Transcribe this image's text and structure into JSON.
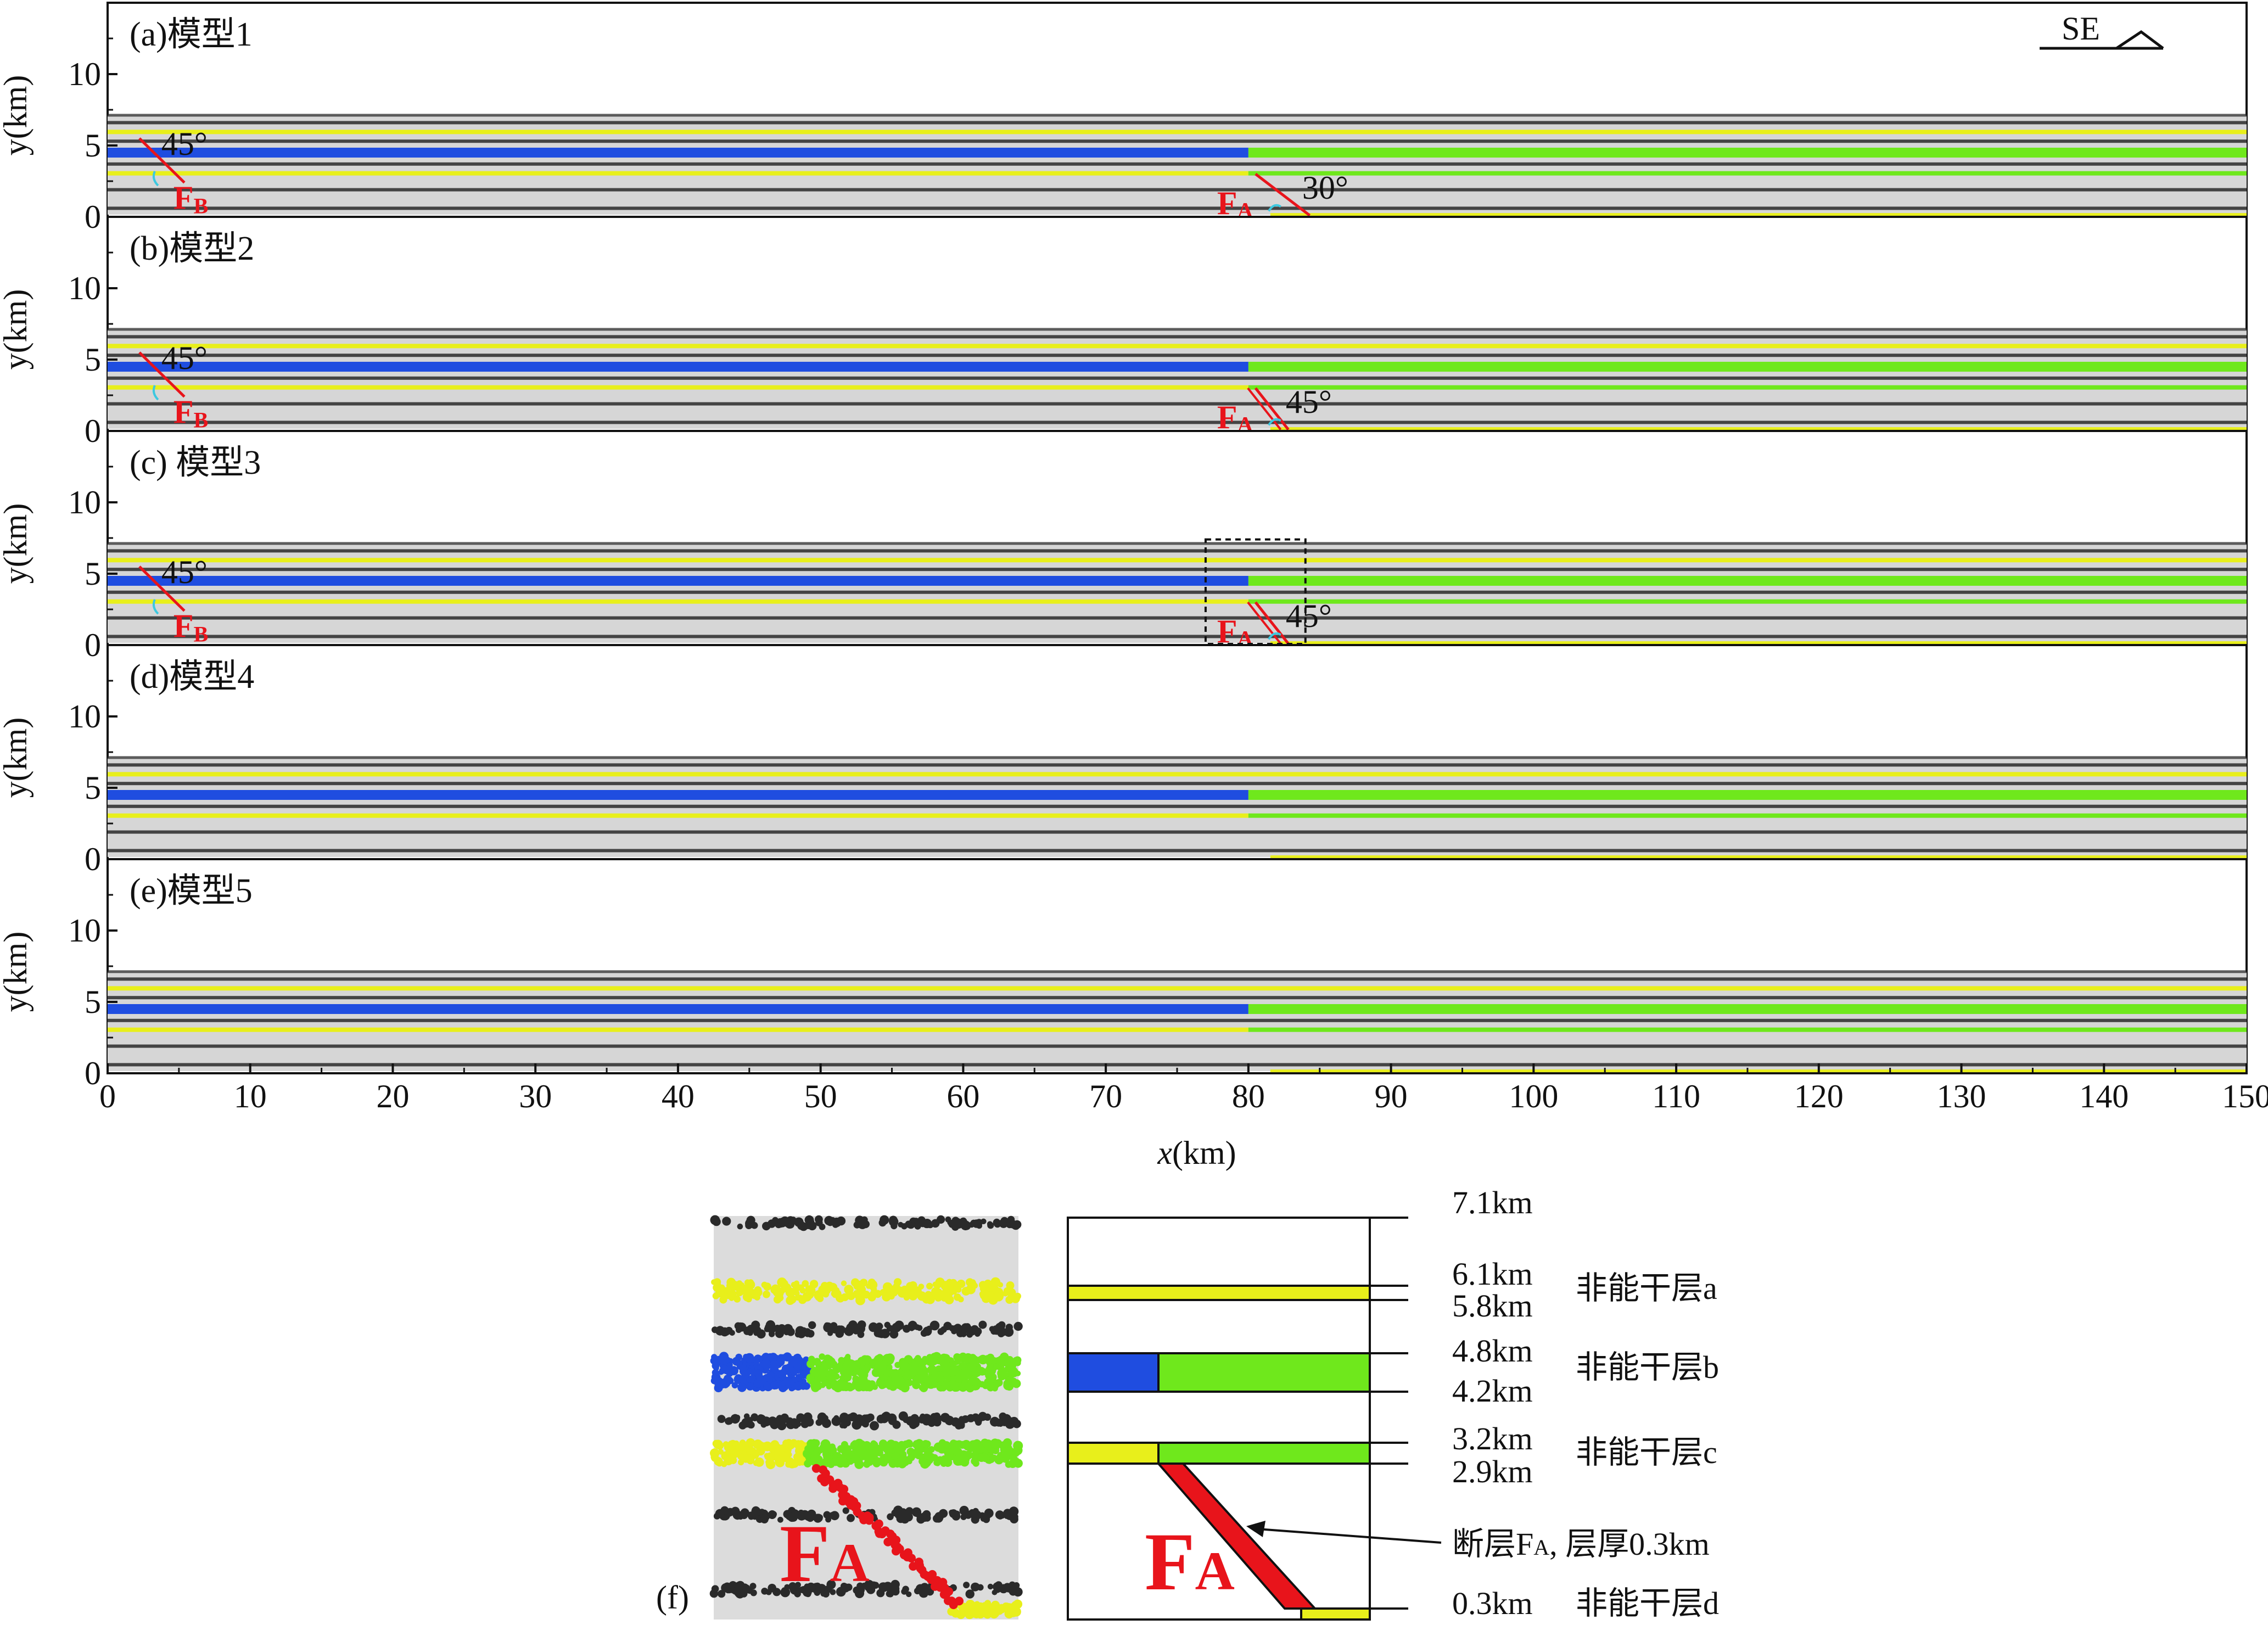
{
  "compass": {
    "label": "SE"
  },
  "axes": {
    "x_label_var": "x",
    "x_label_unit": "(km)",
    "y_label": "y(km)",
    "x_ticks": [
      "0",
      "10",
      "20",
      "30",
      "40",
      "50",
      "60",
      "70",
      "80",
      "90",
      "100",
      "110",
      "120",
      "130",
      "140",
      "150"
    ],
    "y_ticks": [
      "0",
      "5",
      "10"
    ]
  },
  "panels": [
    {
      "title": "(a)模型1",
      "faults": [
        {
          "name": "F",
          "sub": "B",
          "angle": "45°",
          "x_km": 3.0,
          "kind": "B"
        },
        {
          "name": "F",
          "sub": "A",
          "angle": "30°",
          "x_km": 80.5,
          "kind": "A30"
        }
      ]
    },
    {
      "title": "(b)模型2",
      "faults": [
        {
          "name": "F",
          "sub": "B",
          "angle": "45°",
          "x_km": 3.0,
          "kind": "B"
        },
        {
          "name": "F",
          "sub": "A",
          "angle": "45°",
          "x_km": 80.5,
          "kind": "A45"
        }
      ]
    },
    {
      "title": "(c) 模型3",
      "faults": [
        {
          "name": "F",
          "sub": "B",
          "angle": "45°",
          "x_km": 3.0,
          "kind": "B"
        },
        {
          "name": "F",
          "sub": "A",
          "angle": "45°",
          "x_km": 80.5,
          "kind": "A45"
        }
      ],
      "box": true
    },
    {
      "title": "(d)模型4",
      "faults": []
    },
    {
      "title": "(e)模型5",
      "faults": []
    }
  ],
  "layers": {
    "top_km": 7.1,
    "black_lines_km": [
      6.6,
      5.3,
      3.7,
      1.9,
      0.6
    ],
    "yellow_a_km": 5.95,
    "blue_green_b_km": 4.5,
    "yellow_c_km": 3.05,
    "yellow_d_km": 0.15,
    "split_x_km": 80
  },
  "colors": {
    "gray_fill": "#d6d6d6",
    "black_dots": "#2a2a2a",
    "yellow": "#e8ef1b",
    "blue": "#1f4de0",
    "green": "#6fe81c",
    "red": "#e8141b",
    "cyan": "#3cc8e0"
  },
  "inset": {
    "label": "(f)",
    "fault_name": "F",
    "fault_sub": "A",
    "depths": [
      "7.1km",
      "6.1km",
      "5.8km",
      "4.8km",
      "4.2km",
      "3.2km",
      "2.9km",
      "0.3km"
    ],
    "layer_names": [
      "非能干层a",
      "非能干层b",
      "非能干层c",
      "非能干层d"
    ],
    "fault_note_prefix": "断层F",
    "fault_note_sub": "A",
    "fault_note_suffix": ", 层厚0.3km"
  }
}
